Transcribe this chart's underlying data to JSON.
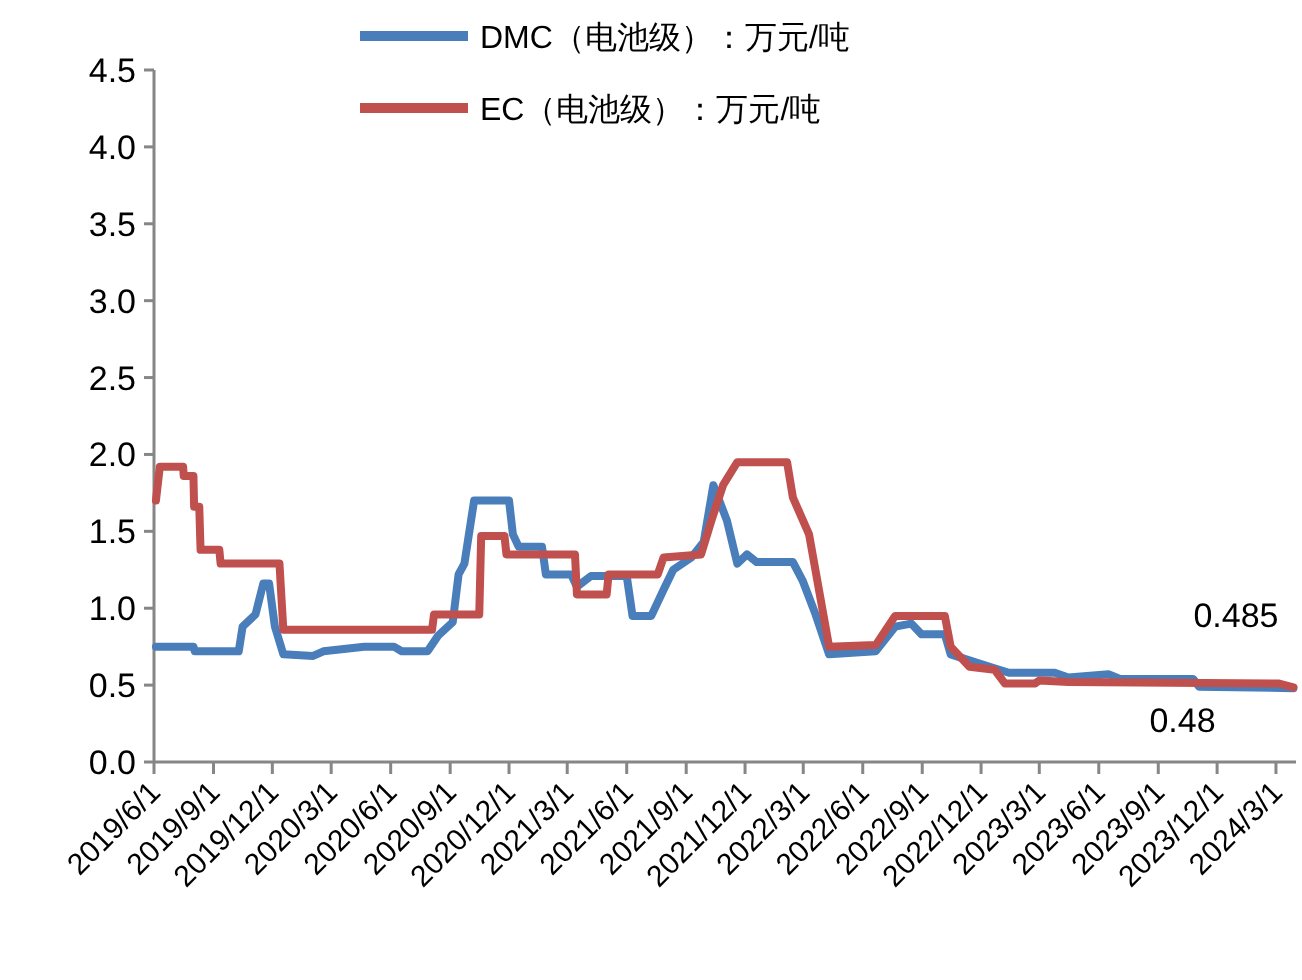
{
  "chart_data": {
    "type": "line",
    "legend": "top",
    "line_style": "solid",
    "xlim": [
      "2019-06-01",
      "2024-04-01"
    ],
    "ylim": [
      0,
      4.5
    ],
    "yticks": [
      {
        "value": 0,
        "label": "0.0"
      },
      {
        "value": 0.5,
        "label": "0.5"
      },
      {
        "value": 1,
        "label": "1.0"
      },
      {
        "value": 1.5,
        "label": "1.5"
      },
      {
        "value": 2,
        "label": "2.0"
      },
      {
        "value": 2.5,
        "label": "2.5"
      },
      {
        "value": 3,
        "label": "3.0"
      },
      {
        "value": 3.5,
        "label": "3.5"
      },
      {
        "value": 4,
        "label": "4.0"
      },
      {
        "value": 4.5,
        "label": "4.5"
      }
    ],
    "xticks": [
      {
        "value": "2019-06-01",
        "label": "2019/6/1"
      },
      {
        "value": "2019-09-01",
        "label": "2019/9/1"
      },
      {
        "value": "2019-12-01",
        "label": "2019/12/1"
      },
      {
        "value": "2020-03-01",
        "label": "2020/3/1"
      },
      {
        "value": "2020-06-01",
        "label": "2020/6/1"
      },
      {
        "value": "2020-09-01",
        "label": "2020/9/1"
      },
      {
        "value": "2020-12-01",
        "label": "2020/12/1"
      },
      {
        "value": "2021-03-01",
        "label": "2021/3/1"
      },
      {
        "value": "2021-06-01",
        "label": "2021/6/1"
      },
      {
        "value": "2021-09-01",
        "label": "2021/9/1"
      },
      {
        "value": "2021-12-01",
        "label": "2021/12/1"
      },
      {
        "value": "2022-03-01",
        "label": "2022/3/1"
      },
      {
        "value": "2022-06-01",
        "label": "2022/6/1"
      },
      {
        "value": "2022-09-01",
        "label": "2022/9/1"
      },
      {
        "value": "2022-12-01",
        "label": "2022/12/1"
      },
      {
        "value": "2023-03-01",
        "label": "2023/3/1"
      },
      {
        "value": "2023-06-01",
        "label": "2023/6/1"
      },
      {
        "value": "2023-09-01",
        "label": "2023/9/1"
      },
      {
        "value": "2023-12-01",
        "label": "2023/12/1"
      },
      {
        "value": "2024-03-01",
        "label": "2024/3/1"
      }
    ],
    "series": [
      {
        "name": "DMC（电池级）：万元/吨",
        "color": "#4a7ebb",
        "x": [
          "2019-06-04",
          "2019-08-01",
          "2019-08-03",
          "2019-10-10",
          "2019-10-16",
          "2019-11-05",
          "2019-11-17",
          "2019-11-26",
          "2019-12-05",
          "2019-12-18",
          "2020-02-02",
          "2020-02-18",
          "2020-04-21",
          "2020-06-06",
          "2020-06-18",
          "2020-07-28",
          "2020-08-13",
          "2020-09-05",
          "2020-09-14",
          "2020-09-23",
          "2020-10-08",
          "2020-12-01",
          "2020-12-07",
          "2020-12-16",
          "2021-01-21",
          "2021-01-27",
          "2021-03-07",
          "2021-03-16",
          "2021-04-07",
          "2021-06-01",
          "2021-06-10",
          "2021-07-09",
          "2021-07-28",
          "2021-08-12",
          "2021-09-09",
          "2021-09-28",
          "2021-10-13",
          "2021-11-03",
          "2021-11-19",
          "2021-12-04",
          "2021-12-19",
          "2022-02-13",
          "2022-02-28",
          "2022-03-20",
          "2022-04-10",
          "2022-06-21",
          "2022-07-21",
          "2022-08-15",
          "2022-08-31",
          "2022-10-06",
          "2022-10-15",
          "2022-12-13",
          "2023-01-13",
          "2023-03-25",
          "2023-04-15",
          "2023-06-16",
          "2023-07-04",
          "2023-10-25",
          "2023-11-03",
          "2024-03-28"
        ],
        "values": [
          0.75,
          0.75,
          0.72,
          0.72,
          0.88,
          0.96,
          1.16,
          1.16,
          0.88,
          0.7,
          0.69,
          0.72,
          0.75,
          0.75,
          0.72,
          0.72,
          0.82,
          0.91,
          1.22,
          1.29,
          1.7,
          1.7,
          1.48,
          1.4,
          1.4,
          1.22,
          1.22,
          1.14,
          1.21,
          1.21,
          0.95,
          0.95,
          1.12,
          1.25,
          1.33,
          1.43,
          1.8,
          1.57,
          1.29,
          1.35,
          1.3,
          1.3,
          1.18,
          0.96,
          0.7,
          0.72,
          0.88,
          0.9,
          0.83,
          0.83,
          0.7,
          0.62,
          0.58,
          0.58,
          0.55,
          0.57,
          0.54,
          0.54,
          0.49,
          0.48
        ]
      },
      {
        "name": "EC（电池级）：万元/吨",
        "color": "#c0504d",
        "x": [
          "2019-06-04",
          "2019-06-10",
          "2019-07-16",
          "2019-07-17",
          "2019-08-01",
          "2019-08-02",
          "2019-08-10",
          "2019-08-12",
          "2019-09-10",
          "2019-09-12",
          "2019-12-12",
          "2019-12-18",
          "2020-08-04",
          "2020-08-07",
          "2020-10-16",
          "2020-10-19",
          "2020-11-24",
          "2020-11-27",
          "2021-03-13",
          "2021-03-16",
          "2021-05-01",
          "2021-05-04",
          "2021-07-19",
          "2021-07-28",
          "2021-09-24",
          "2021-10-10",
          "2021-10-28",
          "2021-11-19",
          "2022-02-04",
          "2022-02-13",
          "2022-03-10",
          "2022-04-10",
          "2022-06-21",
          "2022-07-21",
          "2022-10-06",
          "2022-10-15",
          "2022-11-13",
          "2022-12-22",
          "2023-01-07",
          "2023-02-22",
          "2023-03-01",
          "2023-04-15",
          "2024-03-06",
          "2024-03-28"
        ],
        "values": [
          1.7,
          1.92,
          1.92,
          1.86,
          1.86,
          1.66,
          1.66,
          1.38,
          1.38,
          1.29,
          1.29,
          0.86,
          0.86,
          0.96,
          0.96,
          1.47,
          1.47,
          1.35,
          1.35,
          1.09,
          1.09,
          1.22,
          1.22,
          1.33,
          1.35,
          1.57,
          1.8,
          1.95,
          1.95,
          1.72,
          1.48,
          0.75,
          0.76,
          0.95,
          0.95,
          0.75,
          0.62,
          0.6,
          0.51,
          0.51,
          0.53,
          0.52,
          0.51,
          0.485
        ]
      }
    ],
    "annotations": [
      {
        "text": "0.485",
        "x": "2024-03-28",
        "y": 0.485
      },
      {
        "text": "0.48",
        "x": "2024-03-28",
        "y": 0.48
      }
    ]
  }
}
